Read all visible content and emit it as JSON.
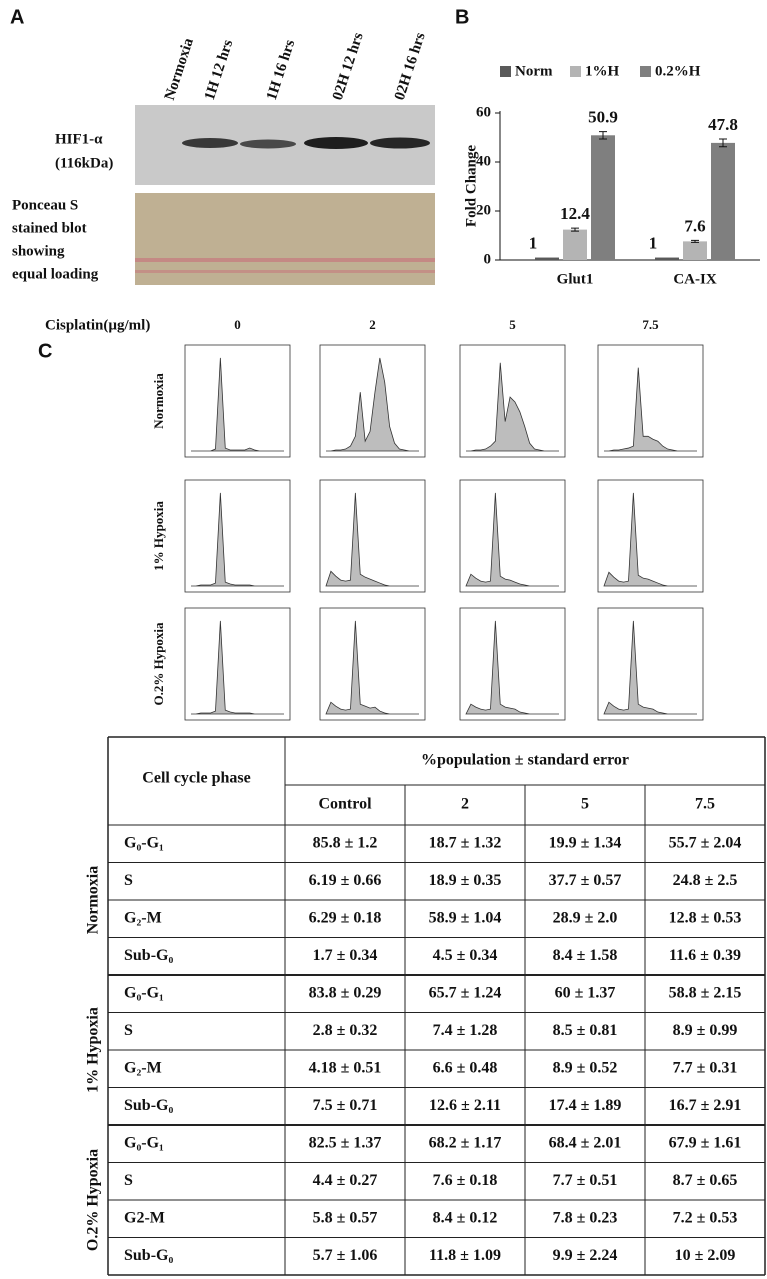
{
  "panel_a": {
    "label": "A",
    "lanes": [
      "Normoxia",
      "1H 12 hrs",
      "1H 16 hrs",
      "02H 12 hrs",
      "02H 16 hrs"
    ],
    "hif_label": [
      "HIF1-α",
      "(116kDa)"
    ],
    "ponceau_label": [
      "Ponceau S",
      "stained blot",
      "showing",
      "equal loading"
    ]
  },
  "chart_data": {
    "type": "bar",
    "panel_label": "B",
    "ylabel": "Fold Change",
    "categories": [
      "Glut1",
      "CA-IX"
    ],
    "series": [
      {
        "name": "Norm",
        "color": "#5a5a5a",
        "values": [
          1,
          1
        ]
      },
      {
        "name": "1%H",
        "color": "#b4b4b4",
        "values": [
          12.4,
          7.6
        ],
        "errors": [
          0.6,
          0.4
        ]
      },
      {
        "name": "0.2%H",
        "color": "#7f7f7f",
        "values": [
          50.9,
          47.8
        ],
        "errors": [
          1.5,
          1.6
        ]
      }
    ],
    "ylim": [
      0,
      60
    ],
    "yticks": [
      0,
      20,
      40,
      60
    ],
    "legend": "top"
  },
  "panel_c": {
    "label": "C",
    "xlabel": "Cisplatin(µg/ml)",
    "doses": [
      "0",
      "2",
      "5",
      "7.5"
    ],
    "conditions": [
      "Normoxia",
      "1% Hypoxia",
      "O.2% Hypoxia"
    ],
    "x": [
      0,
      1,
      2,
      3,
      4,
      5,
      6,
      7,
      8,
      9,
      10,
      11,
      12,
      13,
      14,
      15,
      16,
      17,
      18,
      19
    ],
    "histograms": [
      [
        [
          0,
          0,
          0,
          0,
          0,
          2,
          95,
          3,
          1,
          1,
          1,
          1,
          3,
          1,
          0,
          0,
          0,
          0,
          0,
          0
        ],
        [
          0,
          0,
          1,
          1,
          2,
          5,
          15,
          60,
          10,
          20,
          60,
          95,
          70,
          25,
          8,
          2,
          1,
          0,
          0,
          0
        ],
        [
          0,
          0,
          1,
          1,
          2,
          5,
          10,
          90,
          30,
          55,
          50,
          40,
          25,
          8,
          2,
          1,
          0,
          0,
          0,
          0
        ],
        [
          0,
          0,
          1,
          1,
          2,
          3,
          5,
          85,
          15,
          15,
          12,
          10,
          5,
          2,
          1,
          0,
          0,
          0,
          0,
          0
        ]
      ],
      [
        [
          0,
          0,
          1,
          1,
          1,
          3,
          95,
          4,
          2,
          1,
          1,
          1,
          1,
          0,
          0,
          0,
          0,
          0,
          0,
          0
        ],
        [
          0,
          15,
          10,
          6,
          5,
          6,
          95,
          12,
          9,
          7,
          5,
          3,
          1,
          0,
          0,
          0,
          0,
          0,
          0,
          0
        ],
        [
          0,
          12,
          8,
          5,
          4,
          5,
          95,
          10,
          7,
          6,
          4,
          2,
          1,
          0,
          0,
          0,
          0,
          0,
          0,
          0
        ],
        [
          0,
          14,
          9,
          5,
          4,
          5,
          95,
          11,
          8,
          7,
          5,
          3,
          1,
          0,
          0,
          0,
          0,
          0,
          0,
          0
        ]
      ],
      [
        [
          0,
          0,
          1,
          1,
          1,
          3,
          95,
          4,
          2,
          1,
          1,
          1,
          1,
          0,
          0,
          0,
          0,
          0,
          0,
          0
        ],
        [
          0,
          12,
          8,
          5,
          4,
          5,
          95,
          10,
          8,
          6,
          7,
          3,
          1,
          0,
          0,
          0,
          0,
          0,
          0,
          0
        ],
        [
          0,
          10,
          7,
          5,
          4,
          5,
          95,
          10,
          7,
          6,
          5,
          2,
          1,
          0,
          0,
          0,
          0,
          0,
          0,
          0
        ],
        [
          0,
          12,
          8,
          5,
          4,
          5,
          95,
          10,
          7,
          6,
          5,
          2,
          1,
          0,
          0,
          0,
          0,
          0,
          0,
          0
        ]
      ]
    ]
  },
  "table": {
    "phase_header": "Cell cycle phase",
    "span_header": "%population ± standard error",
    "columns": [
      "Control",
      "2",
      "5",
      "7.5"
    ],
    "groups": [
      {
        "name": "Normoxia",
        "rows": [
          [
            "G₀-G₁",
            "85.8 ± 1.2",
            "18.7 ± 1.32",
            "19.9 ± 1.34",
            "55.7 ± 2.04"
          ],
          [
            "S",
            "6.19 ± 0.66",
            "18.9 ± 0.35",
            "37.7 ± 0.57",
            "24.8 ± 2.5"
          ],
          [
            "G₂-M",
            "6.29 ± 0.18",
            "58.9 ± 1.04",
            "28.9 ± 2.0",
            "12.8 ± 0.53"
          ],
          [
            "Sub-G₀",
            "1.7 ± 0.34",
            "4.5 ± 0.34",
            "8.4 ± 1.58",
            "11.6 ± 0.39"
          ]
        ]
      },
      {
        "name": "1% Hypoxia",
        "rows": [
          [
            "G₀-G₁",
            "83.8 ± 0.29",
            "65.7 ± 1.24",
            "60 ± 1.37",
            "58.8 ± 2.15"
          ],
          [
            "S",
            "2.8 ± 0.32",
            "7.4 ± 1.28",
            "8.5 ± 0.81",
            "8.9 ± 0.99"
          ],
          [
            "G₂-M",
            "4.18 ± 0.51",
            "6.6 ± 0.48",
            "8.9 ± 0.52",
            "7.7 ± 0.31"
          ],
          [
            "Sub-G₀",
            "7.5 ± 0.71",
            "12.6 ± 2.11",
            "17.4 ± 1.89",
            "16.7 ± 2.91"
          ]
        ]
      },
      {
        "name": "O.2% Hypoxia",
        "rows": [
          [
            "G₀-G₁",
            "82.5 ± 1.37",
            "68.2 ± 1.17",
            "68.4 ± 2.01",
            "67.9 ± 1.61"
          ],
          [
            "S",
            "4.4 ± 0.27",
            "7.6 ± 0.18",
            "7.7 ± 0.51",
            "8.7 ± 0.65"
          ],
          [
            "G2-M",
            "5.8 ± 0.57",
            "8.4 ± 0.12",
            "7.8 ± 0.23",
            "7.2 ± 0.53"
          ],
          [
            "Sub-G₀",
            "5.7 ± 1.06",
            "11.8 ± 1.09",
            "9.9 ± 2.24",
            "10 ± 2.09"
          ]
        ]
      }
    ]
  }
}
